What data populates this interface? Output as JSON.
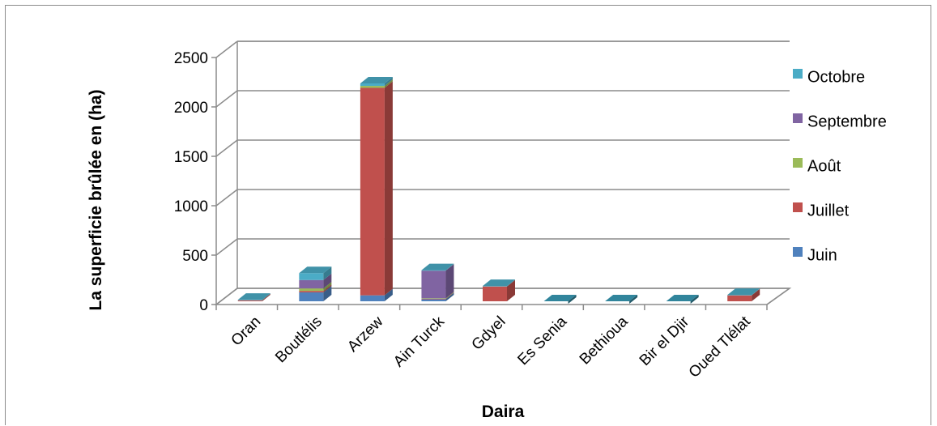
{
  "chart_data": {
    "type": "bar",
    "stacked": true,
    "three_d": true,
    "categories": [
      "Oran",
      "Boutlélis",
      "Arzew",
      "Ain Turck",
      "Gdyel",
      "Es Senia",
      "Bethioua",
      "Bir el Djir",
      "Oued Tlélat"
    ],
    "series": [
      {
        "name": "Juin",
        "color": "#4F81BD",
        "values": [
          0,
          90,
          60,
          20,
          0,
          0,
          0,
          0,
          0
        ]
      },
      {
        "name": "Juillet",
        "color": "#C0504D",
        "values": [
          10,
          15,
          2100,
          5,
          150,
          0,
          0,
          0,
          60
        ]
      },
      {
        "name": "Août",
        "color": "#9BBB59",
        "values": [
          0,
          25,
          20,
          5,
          0,
          0,
          0,
          0,
          0
        ]
      },
      {
        "name": "Septembre",
        "color": "#8064A2",
        "values": [
          0,
          85,
          0,
          280,
          0,
          0,
          0,
          0,
          0
        ]
      },
      {
        "name": "Octobre",
        "color": "#4BACC6",
        "values": [
          5,
          70,
          25,
          5,
          5,
          0,
          0,
          0,
          5
        ]
      }
    ],
    "y_ticks": [
      "0",
      "500",
      "1000",
      "1500",
      "2000",
      "2500"
    ],
    "ylim": [
      0,
      2500
    ],
    "xlabel": "Daira",
    "ylabel": "La superficie brûlée en (ha)",
    "title": "",
    "grid": true,
    "legend_position": "right"
  }
}
